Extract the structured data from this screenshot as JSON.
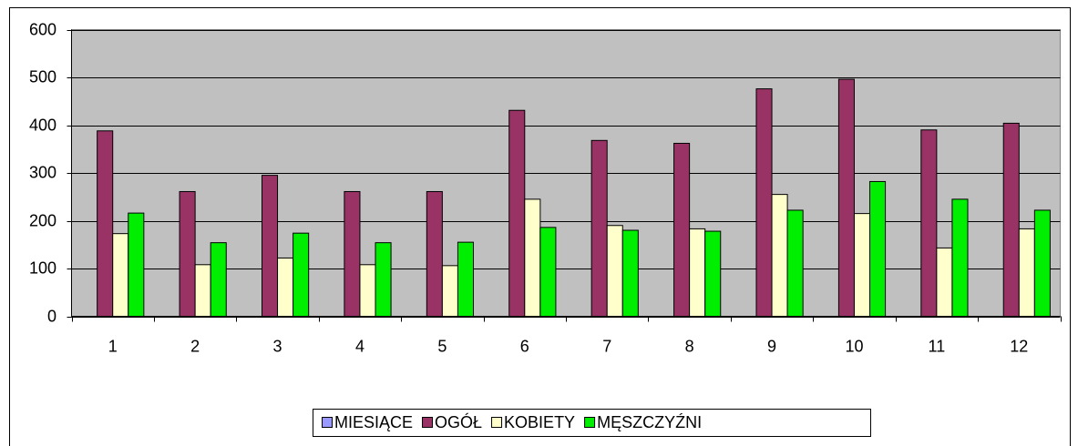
{
  "chart_data": {
    "type": "bar",
    "categories": [
      "1",
      "2",
      "3",
      "4",
      "5",
      "6",
      "7",
      "8",
      "9",
      "10",
      "11",
      "12"
    ],
    "series": [
      {
        "name": "MIESIĄCE",
        "color": "#9999ff",
        "values": [
          null,
          null,
          null,
          null,
          null,
          null,
          null,
          null,
          null,
          null,
          null,
          null
        ]
      },
      {
        "name": "OGÓŁ",
        "color": "#993366",
        "values": [
          388,
          261,
          295,
          261,
          261,
          431,
          368,
          362,
          476,
          496,
          390,
          404
        ]
      },
      {
        "name": "KOBIETY",
        "color": "#ffffcc",
        "values": [
          173,
          108,
          122,
          108,
          106,
          245,
          190,
          183,
          255,
          215,
          143,
          183
        ]
      },
      {
        "name": "MĘSZCZYŹNI",
        "color": "#00ee00",
        "values": [
          216,
          154,
          174,
          154,
          155,
          186,
          180,
          178,
          222,
          282,
          245,
          222
        ]
      }
    ],
    "ylim": [
      0,
      600
    ],
    "yticks": [
      0,
      100,
      200,
      300,
      400,
      500,
      600
    ],
    "grid": true,
    "legend": "bottom"
  }
}
